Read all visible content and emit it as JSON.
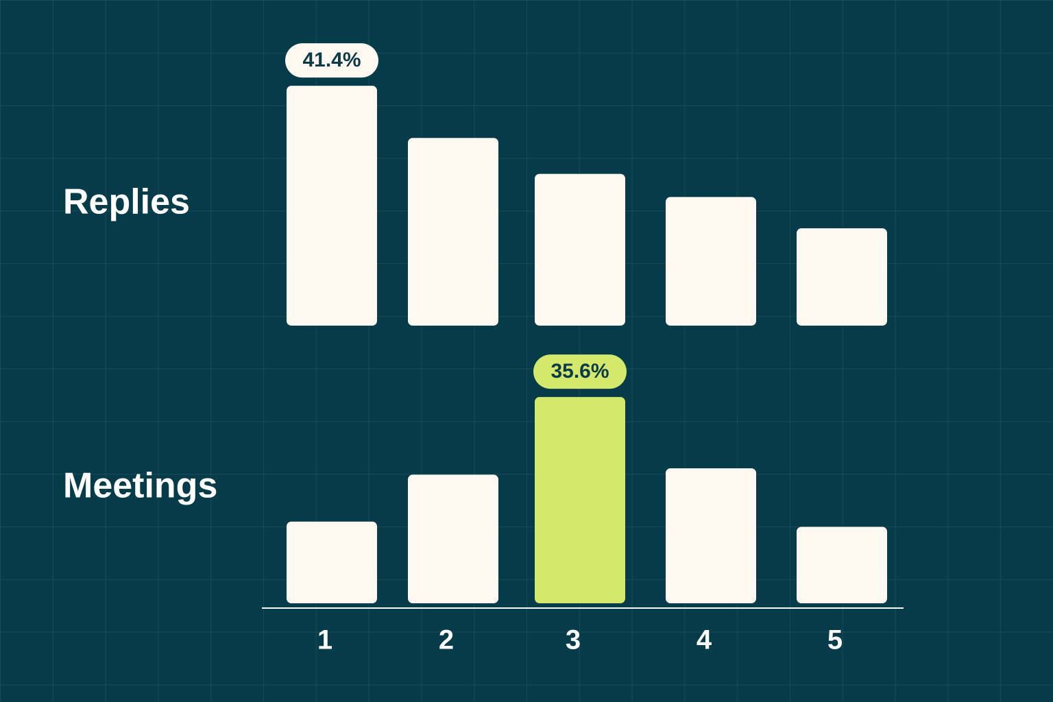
{
  "chart_data": {
    "type": "bar",
    "categories": [
      "1",
      "2",
      "3",
      "4",
      "5"
    ],
    "series": [
      {
        "name": "Replies",
        "color": "#fdf9f0",
        "colors": [
          "#fdf9f0",
          "#fdf9f0",
          "#fdf9f0",
          "#fdf9f0",
          "#fdf9f0"
        ],
        "values": [
          41.4,
          32.4,
          26.2,
          22.2,
          16.8
        ],
        "value_labels": [
          "41.4%",
          null,
          null,
          null,
          null
        ]
      },
      {
        "name": "Meetings",
        "color": "#fdf9f0",
        "colors": [
          "#fdf9f0",
          "#fdf9f0",
          "#d4e86c",
          "#fdf9f0",
          "#fdf9f0"
        ],
        "values": [
          14.1,
          22.2,
          35.6,
          23.3,
          13.2
        ],
        "value_labels": [
          null,
          null,
          "35.6%",
          null,
          null
        ]
      }
    ]
  }
}
